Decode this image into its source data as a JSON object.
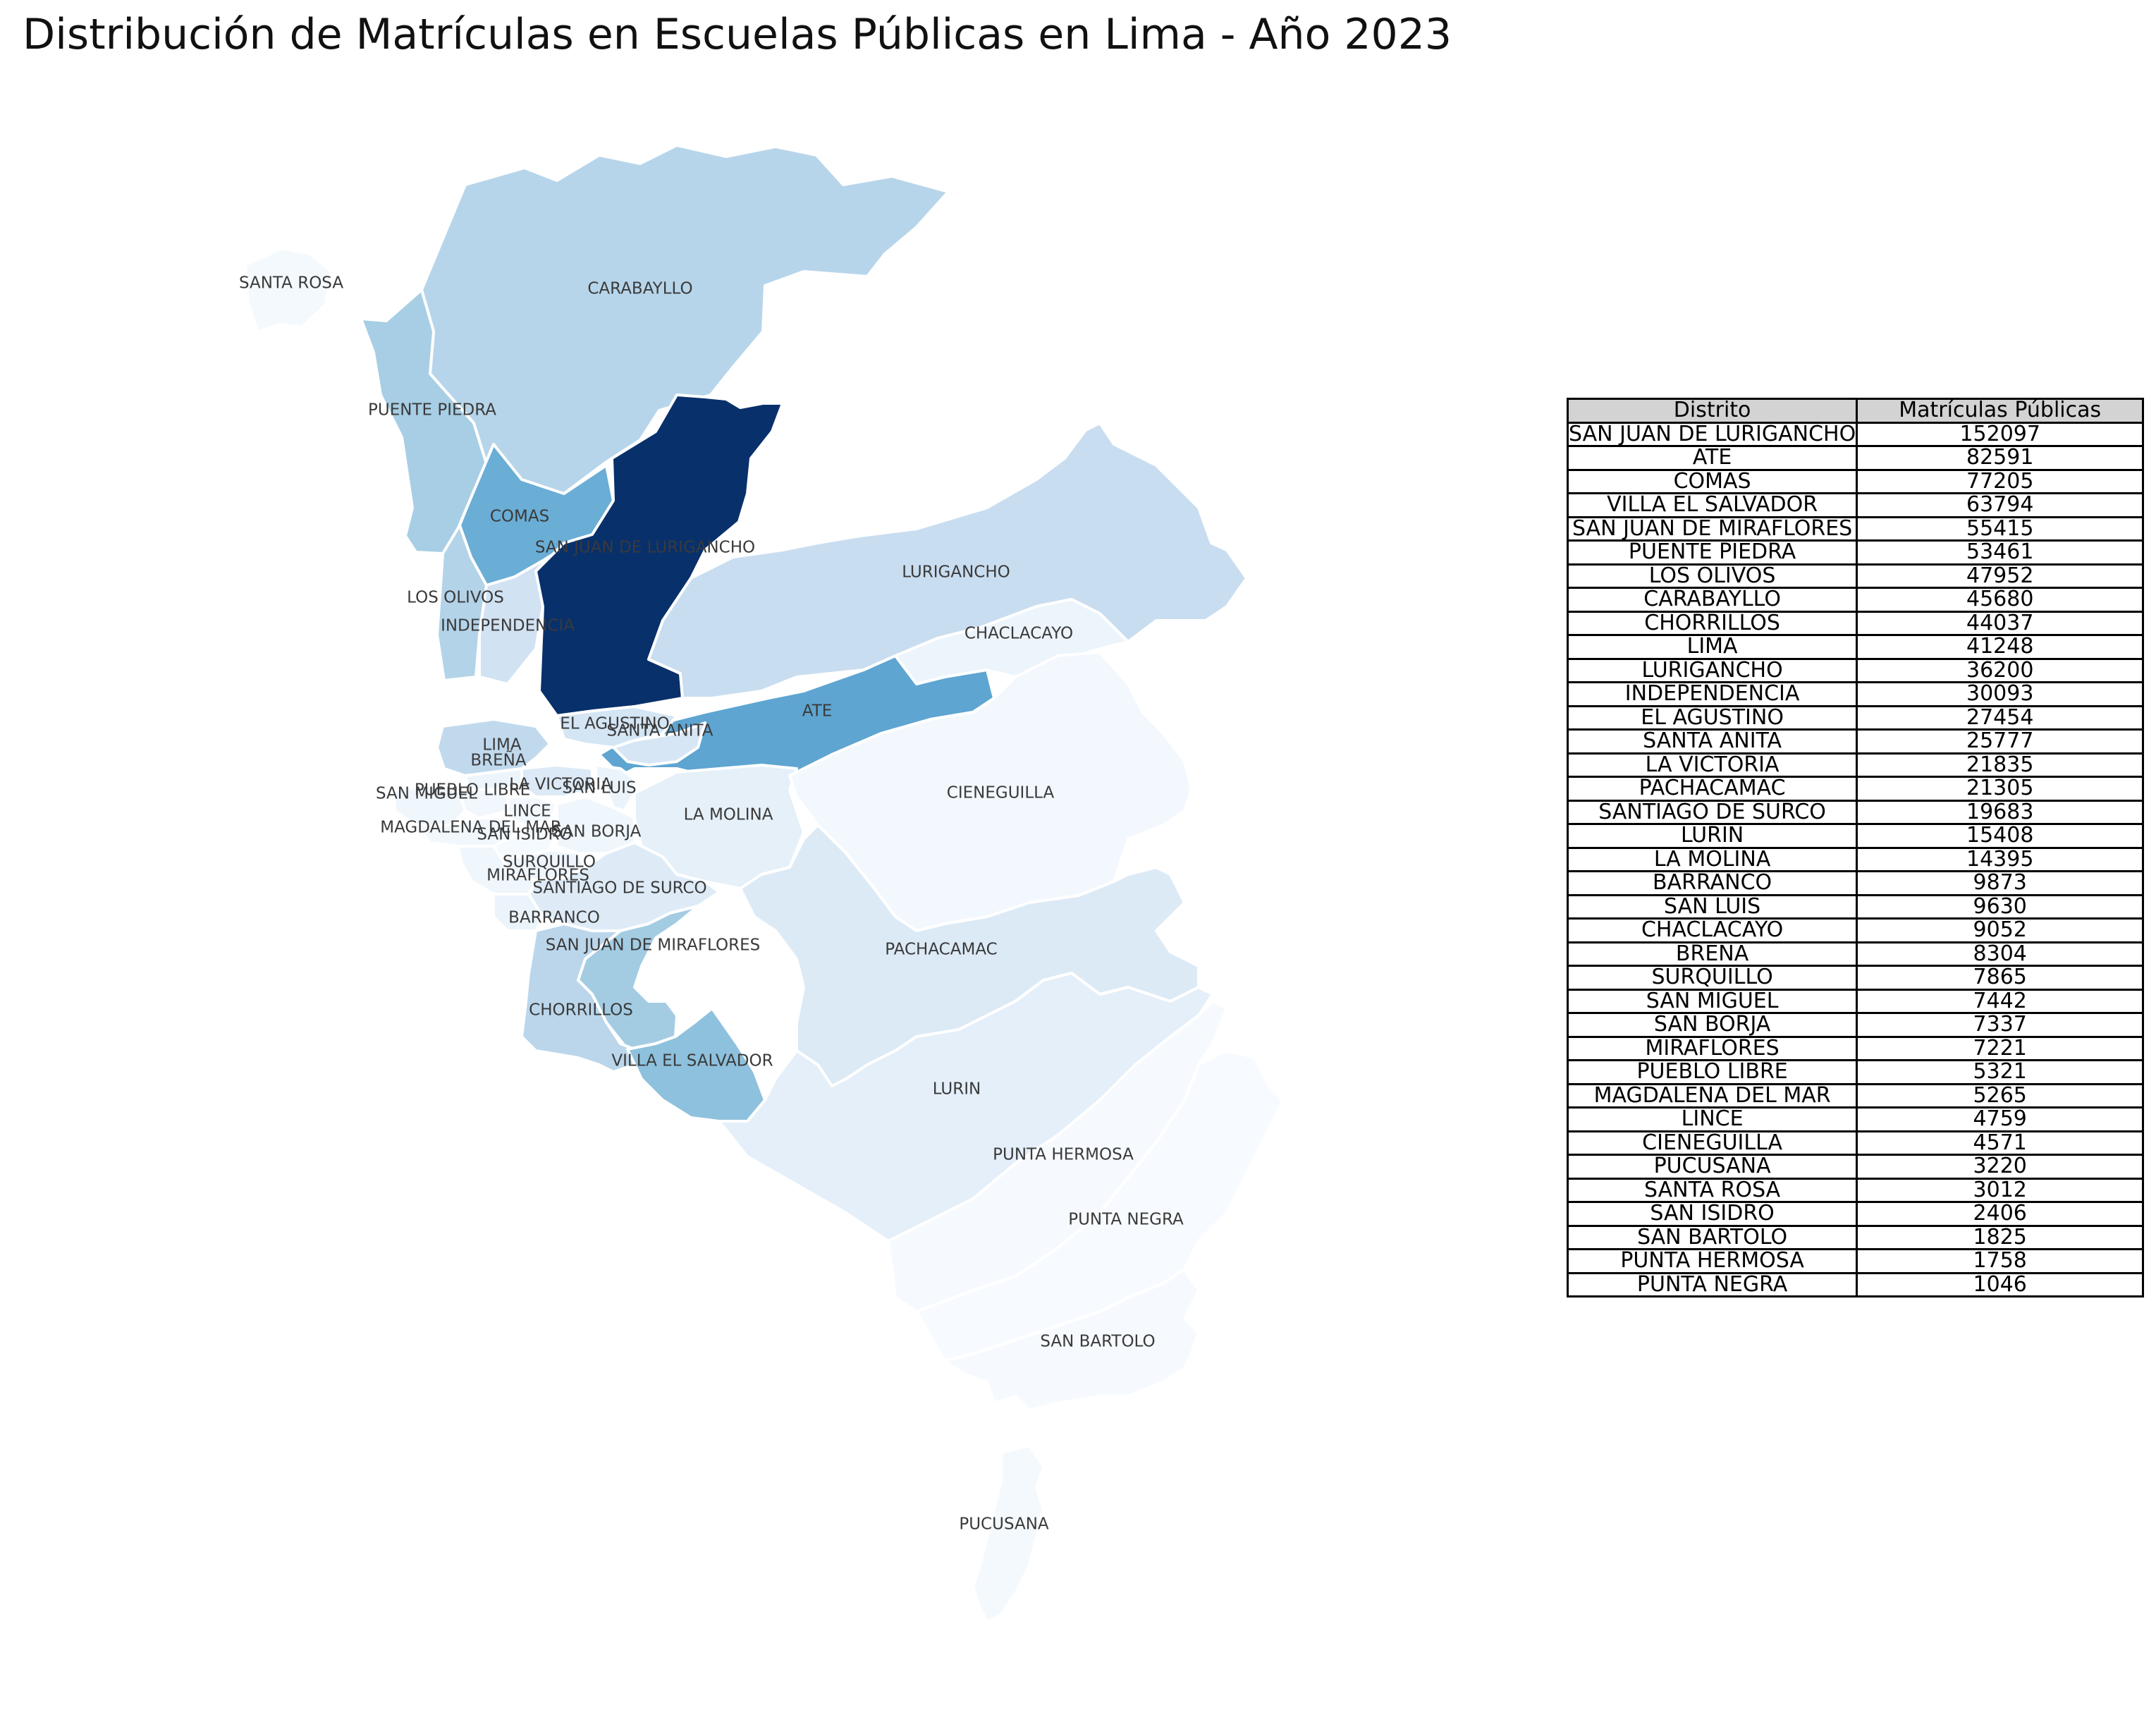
{
  "title": "Distribución de Matrículas en Escuelas Públicas en Lima - Año 2023",
  "colormap": "Blues",
  "table": {
    "headers": [
      "Distrito",
      "Matrículas Públicas"
    ],
    "rows": [
      [
        "SAN JUAN DE LURIGANCHO",
        152097
      ],
      [
        "ATE",
        82591
      ],
      [
        "COMAS",
        77205
      ],
      [
        "VILLA EL SALVADOR",
        63794
      ],
      [
        "SAN JUAN DE MIRAFLORES",
        55415
      ],
      [
        "PUENTE PIEDRA",
        53461
      ],
      [
        "LOS OLIVOS",
        47952
      ],
      [
        "CARABAYLLO",
        45680
      ],
      [
        "CHORRILLOS",
        44037
      ],
      [
        "LIMA",
        41248
      ],
      [
        "LURIGANCHO",
        36200
      ],
      [
        "INDEPENDENCIA",
        30093
      ],
      [
        "EL AGUSTINO",
        27454
      ],
      [
        "SANTA ANITA",
        25777
      ],
      [
        "LA VICTORIA",
        21835
      ],
      [
        "PACHACAMAC",
        21305
      ],
      [
        "SANTIAGO DE SURCO",
        19683
      ],
      [
        "LURIN",
        15408
      ],
      [
        "LA MOLINA",
        14395
      ],
      [
        "BARRANCO",
        9873
      ],
      [
        "SAN LUIS",
        9630
      ],
      [
        "CHACLACAYO",
        9052
      ],
      [
        "BREÑA",
        8304
      ],
      [
        "SURQUILLO",
        7865
      ],
      [
        "SAN MIGUEL",
        7442
      ],
      [
        "SAN BORJA",
        7337
      ],
      [
        "MIRAFLORES",
        7221
      ],
      [
        "PUEBLO LIBRE",
        5321
      ],
      [
        "MAGDALENA DEL MAR",
        5265
      ],
      [
        "LINCE",
        4759
      ],
      [
        "CIENEGUILLA",
        4571
      ],
      [
        "PUCUSANA",
        3220
      ],
      [
        "SANTA ROSA",
        3012
      ],
      [
        "SAN ISIDRO",
        2406
      ],
      [
        "SAN BARTOLO",
        1825
      ],
      [
        "PUNTA HERMOSA",
        1758
      ],
      [
        "PUNTA NEGRA",
        1046
      ]
    ]
  },
  "districts": [
    {
      "key": "carabayllo",
      "name": "CARABAYLLO",
      "value": 45680
    },
    {
      "key": "santarosa",
      "name": "SANTA ROSA",
      "value": 3012
    },
    {
      "key": "puentepiedra",
      "name": "PUENTE PIEDRA",
      "value": 53461
    },
    {
      "key": "comas",
      "name": "COMAS",
      "value": 77205
    },
    {
      "key": "losolivos",
      "name": "LOS OLIVOS",
      "value": 47952
    },
    {
      "key": "independencia",
      "name": "INDEPENDENCIA",
      "value": 30093
    },
    {
      "key": "sjl",
      "name": "SAN JUAN DE LURIGANCHO",
      "value": 152097
    },
    {
      "key": "lurigancho",
      "name": "LURIGANCHO",
      "value": 36200
    },
    {
      "key": "chaclacayo",
      "name": "CHACLACAYO",
      "value": 9052
    },
    {
      "key": "ate",
      "name": "ATE",
      "value": 82591
    },
    {
      "key": "elagustino",
      "name": "EL AGUSTINO",
      "value": 27454
    },
    {
      "key": "santaanita",
      "name": "SANTA ANITA",
      "value": 25777
    },
    {
      "key": "lima",
      "name": "LIMA",
      "value": 41248
    },
    {
      "key": "brena",
      "name": "BREÑA",
      "value": 8304
    },
    {
      "key": "sanmiguel",
      "name": "SAN MIGUEL",
      "value": 7442
    },
    {
      "key": "pueblolibre",
      "name": "PUEBLO LIBRE",
      "value": 5321
    },
    {
      "key": "lavictoria",
      "name": "LA VICTORIA",
      "value": 21835
    },
    {
      "key": "sanluis",
      "name": "SAN LUIS",
      "value": 9630
    },
    {
      "key": "lince",
      "name": "LINCE",
      "value": 4759
    },
    {
      "key": "magdalena",
      "name": "MAGDALENA DEL MAR",
      "value": 5265
    },
    {
      "key": "sanisidro",
      "name": "SAN ISIDRO",
      "value": 2406
    },
    {
      "key": "sanborja",
      "name": "SAN BORJA",
      "value": 7337
    },
    {
      "key": "lamolina",
      "name": "LA MOLINA",
      "value": 14395
    },
    {
      "key": "cieneguilla",
      "name": "CIENEGUILLA",
      "value": 4571
    },
    {
      "key": "surquillo",
      "name": "SURQUILLO",
      "value": 7865
    },
    {
      "key": "miraflores",
      "name": "MIRAFLORES",
      "value": 7221
    },
    {
      "key": "surco",
      "name": "SANTIAGO DE SURCO",
      "value": 19683
    },
    {
      "key": "barranco",
      "name": "BARRANCO",
      "value": 9873
    },
    {
      "key": "sjm",
      "name": "SAN JUAN DE MIRAFLORES",
      "value": 55415
    },
    {
      "key": "pachacamac",
      "name": "PACHACAMAC",
      "value": 21305
    },
    {
      "key": "chorrillos",
      "name": "CHORRILLOS",
      "value": 44037
    },
    {
      "key": "ves",
      "name": "VILLA EL SALVADOR",
      "value": 63794
    },
    {
      "key": "lurin",
      "name": "LURIN",
      "value": 15408
    },
    {
      "key": "puntahermosa",
      "name": "PUNTA HERMOSA",
      "value": 1758
    },
    {
      "key": "puntanegra",
      "name": "PUNTA NEGRA",
      "value": 1046
    },
    {
      "key": "sanbartolo",
      "name": "SAN BARTOLO",
      "value": 1825
    },
    {
      "key": "pucusana",
      "name": "PUCUSANA",
      "value": 3220
    }
  ]
}
